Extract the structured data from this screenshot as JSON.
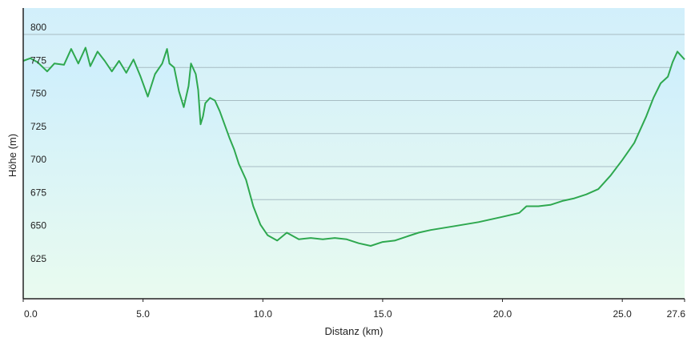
{
  "chart_data": {
    "type": "area",
    "title": "",
    "xlabel": "Distanz  (km)",
    "ylabel": "Höhe (m)",
    "xlim": [
      0,
      27.6
    ],
    "ylim": [
      600,
      820
    ],
    "grid": true,
    "x_ticks": [
      "0.0",
      "5.0",
      "10.0",
      "15.0",
      "20.0",
      "25.0",
      "27.6"
    ],
    "y_ticks": [
      "800",
      "775",
      "750",
      "725",
      "700",
      "675",
      "650",
      "625"
    ],
    "series": [
      {
        "x": [
          0,
          0.3,
          0.6,
          1.0,
          1.3,
          1.7,
          2.0,
          2.3,
          2.6,
          2.8,
          3.1,
          3.4,
          3.7,
          4.0,
          4.3,
          4.6,
          4.9,
          5.2,
          5.5,
          5.8,
          6.0,
          6.1,
          6.3,
          6.5,
          6.7,
          6.9,
          7.0,
          7.2,
          7.3,
          7.4,
          7.5,
          7.6,
          7.8,
          8.0,
          8.2,
          8.4,
          8.6,
          8.8,
          9.0,
          9.3,
          9.6,
          9.9,
          10.2,
          10.6,
          11.0,
          11.5,
          12.0,
          12.5,
          13.0,
          13.5,
          14.0,
          14.5,
          15.0,
          15.5,
          16.0,
          16.5,
          17.0,
          18.0,
          19.0,
          20.0,
          20.7,
          21.0,
          21.5,
          22.0,
          22.5,
          23.0,
          23.5,
          24.0,
          24.5,
          25.0,
          25.5,
          26.0,
          26.3,
          26.6,
          26.9,
          27.1,
          27.3,
          27.6
        ],
        "y": [
          780,
          782,
          779,
          772,
          778,
          777,
          789,
          778,
          790,
          776,
          787,
          780,
          772,
          780,
          771,
          781,
          768,
          753,
          770,
          778,
          789,
          778,
          775,
          757,
          745,
          761,
          778,
          770,
          758,
          732,
          738,
          748,
          752,
          750,
          742,
          732,
          722,
          713,
          702,
          690,
          670,
          656,
          648,
          644,
          650,
          645,
          646,
          645,
          646,
          645,
          642,
          640,
          643,
          644,
          647,
          650,
          652,
          655,
          658,
          662,
          665,
          670,
          670,
          671,
          674,
          676,
          679,
          683,
          693,
          705,
          718,
          738,
          752,
          763,
          768,
          779,
          787,
          781
        ]
      }
    ],
    "colors": {
      "line": "#2ea84f",
      "fill_top": "#cdeefd",
      "fill_bottom": "#e9fbef",
      "background_top": "#d2effb",
      "background_bottom": "#e9fbef",
      "grid": "#a7bcc3",
      "axis": "#222222"
    }
  }
}
